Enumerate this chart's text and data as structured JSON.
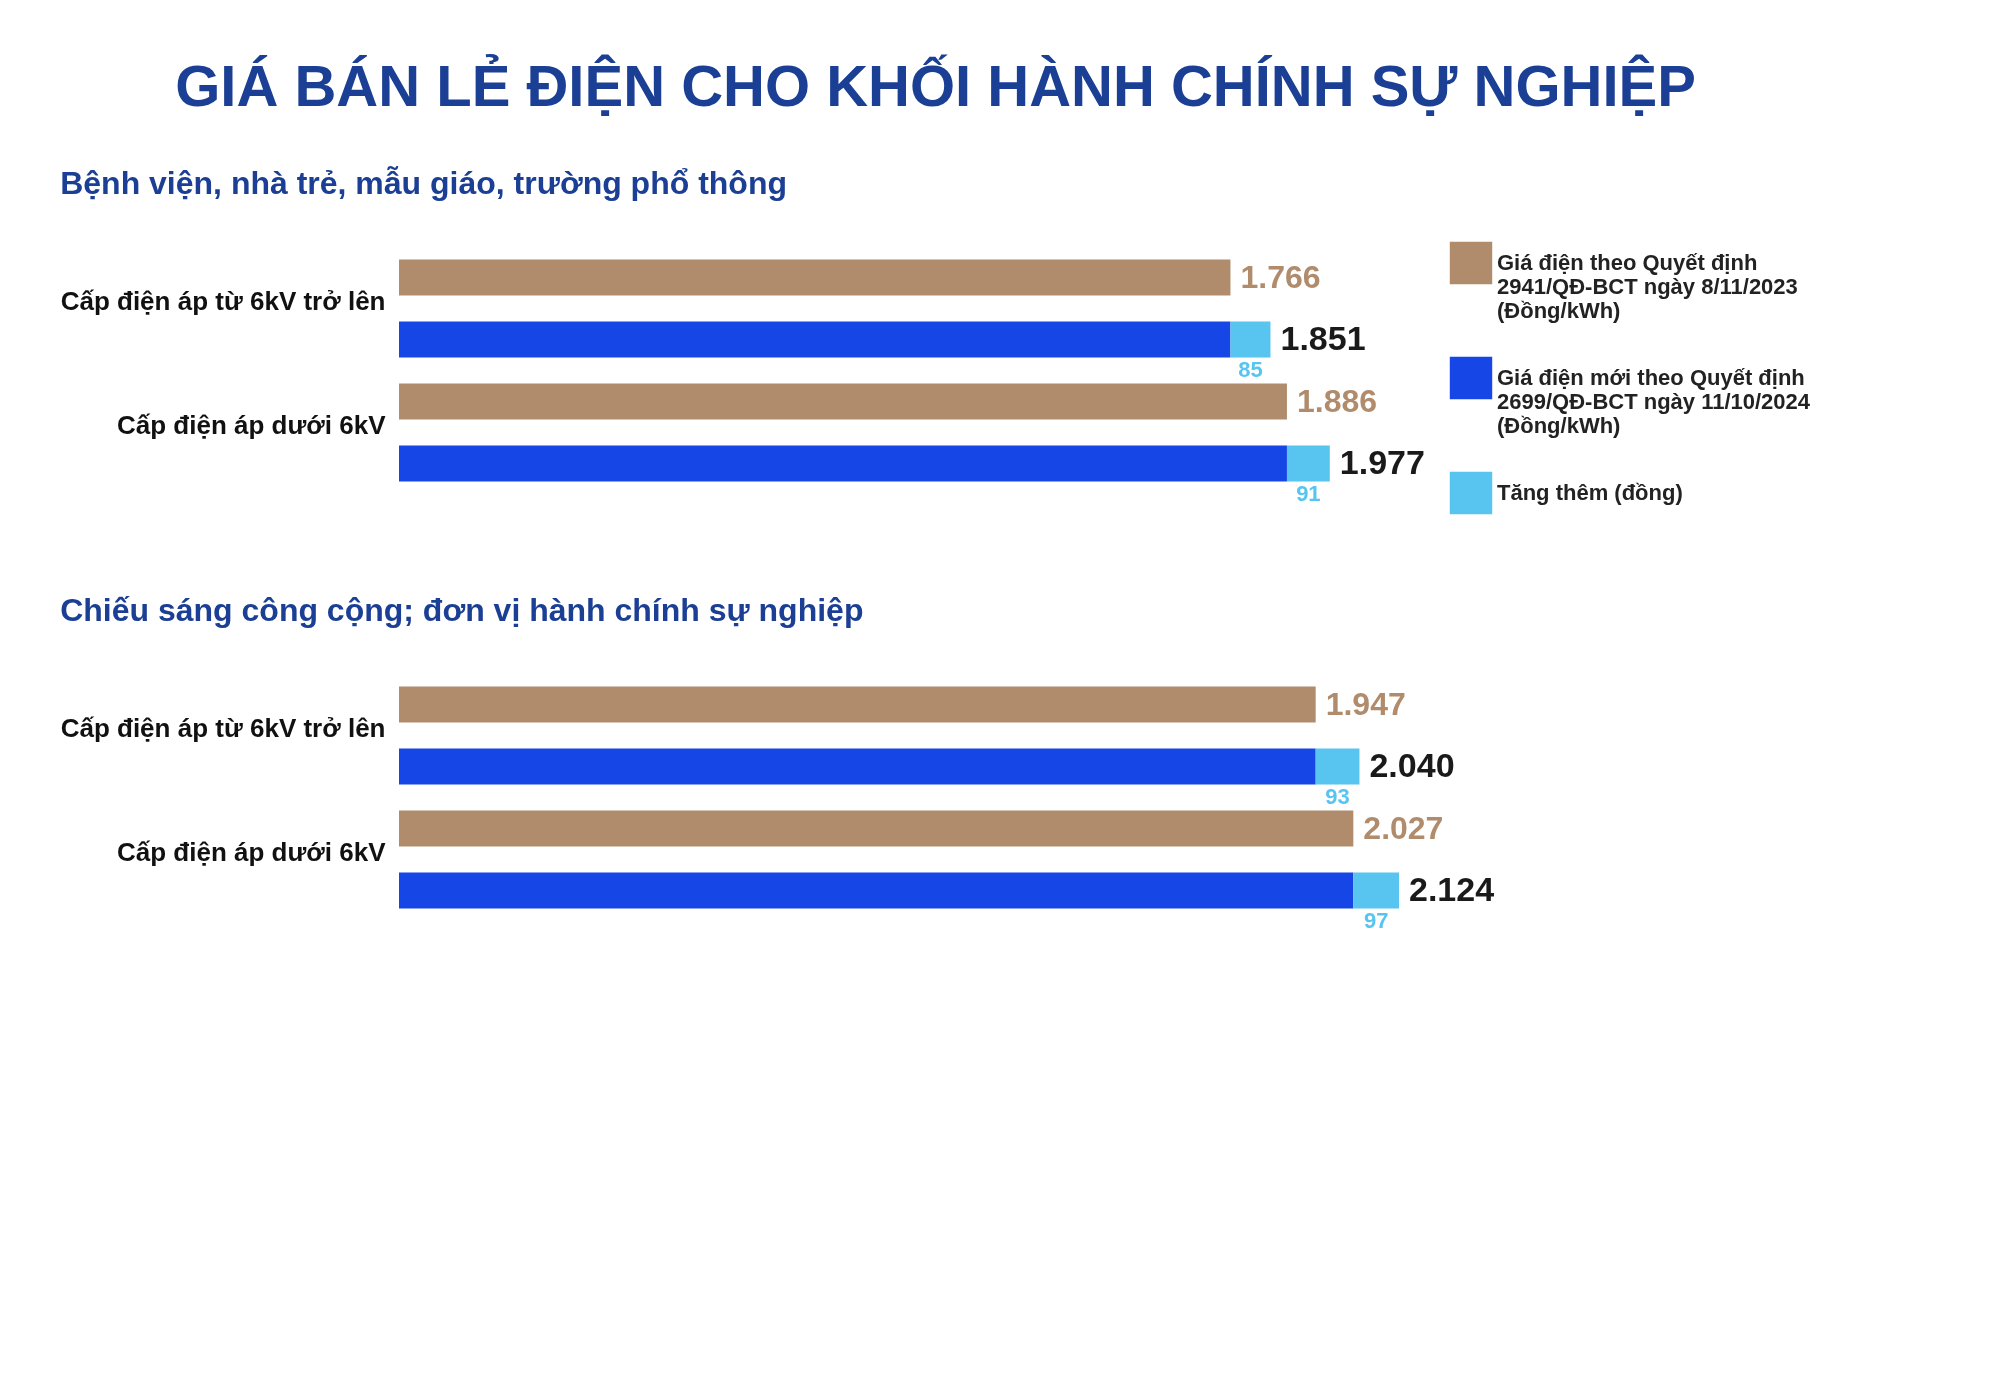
{
  "chart_data": [
    {
      "type": "bar",
      "orientation": "horizontal",
      "title": "GIÁ BÁN LẺ ĐIỆN CHO KHỐI HÀNH CHÍNH SỰ NGHIỆP",
      "subtitle": "Bệnh viện, nhà trẻ, mẫu giáo, trường phổ thông",
      "categories": [
        "Cấp điện áp từ 6kV trở lên",
        null,
        "Cấp điện áp dưới 6kV",
        null
      ],
      "series": [
        {
          "name": "Giá điện theo Quyết định 2941/QĐ-BCT ngày 8/11/2023 (Đồng/kWh)",
          "color": "#b08c6c",
          "values": [
            1766,
            null,
            1886,
            null
          ],
          "value_labels": [
            "1.766",
            null,
            "1.886",
            null
          ]
        },
        {
          "name": "Giá điện mới theo Quyết định 2699/QĐ-BCT ngày 11/10/2024 (Đồng/kWh)",
          "color": "#1746e6",
          "values": [
            null,
            1766,
            null,
            1886
          ]
        },
        {
          "name": "Tăng thêm (đồng)",
          "color": "#58c4f0",
          "values": [
            null,
            85,
            null,
            91
          ],
          "value_labels": [
            null,
            "85",
            null,
            "91"
          ]
        }
      ],
      "totals": [
        null,
        "1.851",
        null,
        "1.977"
      ],
      "stacked": true,
      "legend": "right"
    },
    {
      "type": "bar",
      "orientation": "horizontal",
      "title": "Chiếu sáng công cộng; đơn vị hành chính sự nghiệp",
      "categories": [
        "Cấp điện áp từ 6kV trở lên",
        null,
        "Cấp điện áp dưới 6kV",
        null
      ],
      "series": [
        {
          "color": "#b08c6c",
          "values": [
            1947,
            null,
            2027,
            null
          ],
          "value_labels": [
            "1.947",
            null,
            "2.027",
            null
          ]
        },
        {
          "color": "#1746e6",
          "values": [
            null,
            1947,
            null,
            2027
          ]
        },
        {
          "color": "#58c4f0",
          "values": [
            null,
            93,
            null,
            97
          ],
          "value_labels": [
            null,
            "93",
            null,
            "97"
          ]
        }
      ],
      "totals": [
        null,
        "2.040",
        null,
        "2.124"
      ],
      "stacked": true
    }
  ]
}
